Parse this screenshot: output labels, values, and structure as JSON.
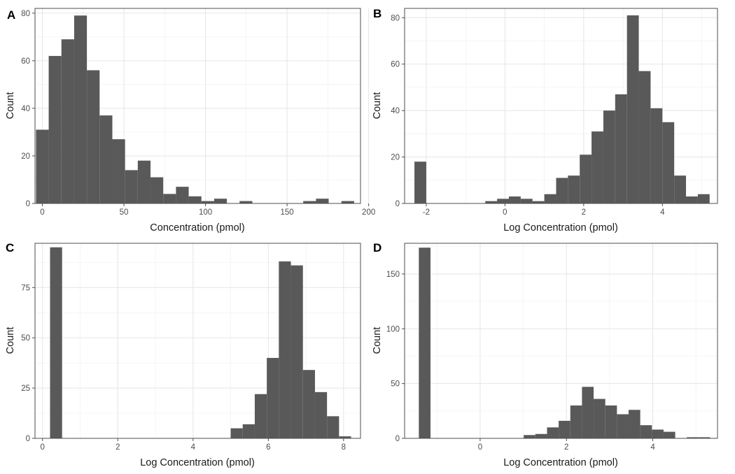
{
  "chart_data": [
    {
      "panel": "A",
      "type": "bar",
      "title": "",
      "xlabel": "Concentration (pmol)",
      "ylabel": "Count",
      "xlim": [
        -4.5,
        195
      ],
      "ylim": [
        0,
        82
      ],
      "xticks": [
        0,
        50,
        100,
        150,
        200
      ],
      "yticks": [
        0,
        20,
        40,
        60,
        80
      ],
      "bin_start": -3.9,
      "bin_width": 7.8,
      "values": [
        31,
        62,
        69,
        79,
        56,
        37,
        27,
        14,
        18,
        11,
        4,
        7,
        3,
        1,
        2,
        0,
        1,
        0,
        0,
        0,
        0,
        1,
        2,
        0,
        1
      ]
    },
    {
      "panel": "B",
      "type": "bar",
      "title": "",
      "xlabel": "Log Concentration (pmol)",
      "ylabel": "Count",
      "xlim": [
        -2.55,
        5.4
      ],
      "ylim": [
        0,
        84
      ],
      "xticks": [
        -2,
        0,
        2,
        4
      ],
      "yticks": [
        0,
        20,
        40,
        60,
        80
      ],
      "bin_start": -2.3,
      "bin_width": 0.3,
      "values": [
        18,
        0,
        0,
        0,
        0,
        0,
        1,
        2,
        3,
        2,
        1,
        4,
        11,
        12,
        21,
        31,
        40,
        47,
        81,
        57,
        41,
        35,
        12,
        3,
        4
      ]
    },
    {
      "panel": "C",
      "type": "bar",
      "title": "",
      "xlabel": "Log Concentration (pmol)",
      "ylabel": "Count",
      "xlim": [
        -0.2,
        8.45
      ],
      "ylim": [
        0,
        97
      ],
      "xticks": [
        0,
        2,
        4,
        6,
        8
      ],
      "yticks": [
        0,
        25,
        50,
        75
      ],
      "bin_start": 0.2,
      "bin_width": 0.32,
      "values": [
        95,
        0,
        0,
        0,
        0,
        0,
        0,
        0,
        0,
        0,
        0,
        0,
        0,
        0,
        0,
        5,
        7,
        22,
        40,
        88,
        86,
        34,
        23,
        11,
        1
      ]
    },
    {
      "panel": "D",
      "type": "bar",
      "title": "",
      "xlabel": "Log Concentration (pmol)",
      "ylabel": "Count",
      "xlim": [
        -1.75,
        5.5
      ],
      "ylim": [
        0,
        178
      ],
      "xticks": [
        0,
        2,
        4
      ],
      "yticks": [
        0,
        50,
        100,
        150
      ],
      "bin_start": -1.42,
      "bin_width": 0.27,
      "values": [
        174,
        0,
        0,
        0,
        0,
        0,
        0,
        0,
        0,
        3,
        4,
        10,
        16,
        30,
        47,
        36,
        30,
        22,
        26,
        12,
        8,
        6,
        0,
        1,
        1
      ]
    }
  ]
}
